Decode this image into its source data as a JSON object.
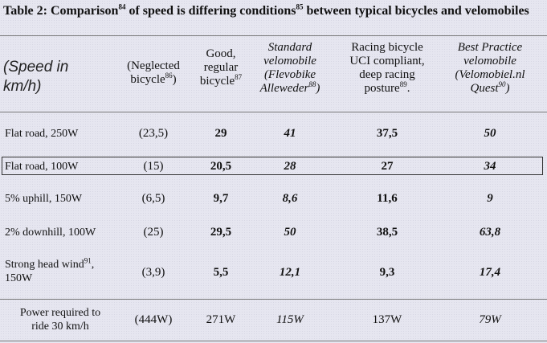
{
  "title": {
    "text_a": "Table 2: Comparison",
    "sup_a": "84",
    "text_b": " of speed is differing conditions",
    "sup_b": "85",
    "text_c": " between typical bicycles and velomobiles"
  },
  "corner": {
    "line1": "(Speed in",
    "line2": "km/h)"
  },
  "headers": [
    {
      "line1": "(Neglected",
      "line2": "bicycle",
      "sup": "86",
      "line2_tail": ")"
    },
    {
      "line1": "Good,",
      "line2": "regular",
      "line3": "bicycle",
      "sup": "87"
    },
    {
      "line1": "Standard",
      "line2": "velomobile",
      "line3": "(Flevobike",
      "line4": "Alleweder",
      "sup": "88",
      "line4_tail": ")"
    },
    {
      "line1": "Racing bicycle",
      "line2": "UCI compliant,",
      "line3": "deep racing",
      "line4": "posture",
      "sup": "89",
      "line4_tail": "."
    },
    {
      "line1": "Best Practice",
      "line2": "velomobile",
      "line3": "(Velomobiel.nl",
      "line4": "Quest",
      "sup": "90",
      "line4_tail": ")"
    }
  ],
  "rows": [
    {
      "label": "Flat road, 250W",
      "values": [
        "(23,5)",
        "29",
        "41",
        "37,5",
        "50"
      ]
    },
    {
      "label": "Flat road, 100W",
      "values": [
        "(15)",
        "20,5",
        "28",
        "27",
        "34"
      ]
    },
    {
      "label": "5% uphill, 150W",
      "values": [
        "(6,5)",
        "9,7",
        "8,6",
        "11,6",
        "9"
      ]
    },
    {
      "label": "2% downhill, 100W",
      "values": [
        "(25)",
        "29,5",
        "50",
        "38,5",
        "63,8"
      ]
    },
    {
      "label": "Strong head wind",
      "label_sup": "91",
      "label_tail": ",",
      "label_line2": "150W",
      "values": [
        "(3,9)",
        "5,5",
        "12,1",
        "9,3",
        "17,4"
      ]
    }
  ],
  "power_row": {
    "label_line1": "Power required to",
    "label_line2": "ride 30 km/h",
    "values": [
      "(444W)",
      "271W",
      "115W",
      "137W",
      "79W"
    ]
  }
}
